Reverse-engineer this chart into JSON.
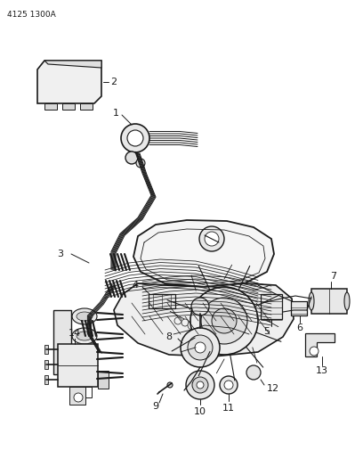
{
  "title": "4125 1300A",
  "bg_color": "#ffffff",
  "line_color": "#1a1a1a",
  "fig_width": 4.08,
  "fig_height": 5.33,
  "dpi": 100
}
